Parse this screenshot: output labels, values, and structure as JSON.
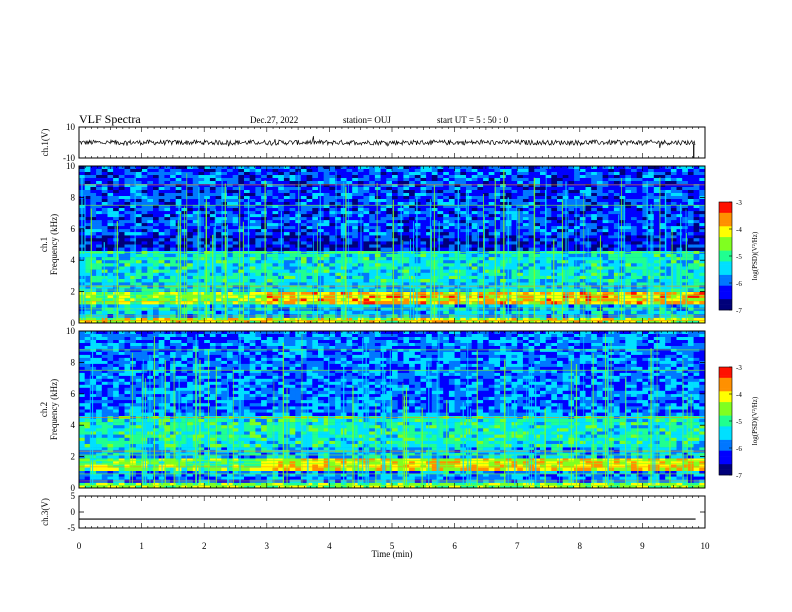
{
  "header": {
    "title": "VLF Spectra",
    "date": "Dec.27, 2022",
    "station": "station= OUJ",
    "start": "start  UT =   5 : 50 : 0"
  },
  "colors": {
    "spectrogram_palette": [
      "#00007a",
      "#0000ff",
      "#0077ff",
      "#00e0ff",
      "#20ff90",
      "#80ff20",
      "#ffff00",
      "#ff9000",
      "#ff1000",
      "#ffffff"
    ],
    "trace": "#000000"
  },
  "chart_data": [
    {
      "type": "line",
      "name": "ch1-waveform",
      "ylabel": "ch.1(V)",
      "ylim": [
        -10,
        10
      ],
      "yticks": [
        "10",
        "-10"
      ],
      "xlim": [
        0,
        10
      ],
      "x": [
        0,
        9.85
      ],
      "y_level": 0,
      "end_spike_x": 9.82
    },
    {
      "type": "heatmap",
      "name": "ch1-spectrogram",
      "ylabel": "ch.1\nFrequency (kHz)",
      "ylim": [
        0,
        10
      ],
      "yticks": [
        "0",
        "2",
        "4",
        "6",
        "8",
        "10"
      ],
      "xlim": [
        0,
        10
      ],
      "colorbar": {
        "label": "log(PSD)(V²/Hz)",
        "range": [
          -7,
          -3
        ],
        "ticks": [
          "-3",
          "-4",
          "-5",
          "-6",
          "-7"
        ]
      },
      "bands": [
        {
          "f": [
            0,
            0.35
          ],
          "level": -4.3
        },
        {
          "f": [
            0.35,
            1.2
          ],
          "level": -5.6
        },
        {
          "f": [
            1.2,
            2.0
          ],
          "level": -4.4
        },
        {
          "f": [
            2.0,
            2.6
          ],
          "level": -5.5
        },
        {
          "f": [
            2.6,
            4.6
          ],
          "level": -5.3
        },
        {
          "f": [
            4.6,
            5.6
          ],
          "level": -6.4
        },
        {
          "f": [
            5.6,
            10
          ],
          "level": -6.1
        }
      ],
      "step_change_x": 2.9
    },
    {
      "type": "heatmap",
      "name": "ch2-spectrogram",
      "ylabel": "ch.2\nFrequency (kHz)",
      "ylim": [
        0,
        10
      ],
      "yticks": [
        "0",
        "2",
        "4",
        "6",
        "8",
        "10"
      ],
      "xlim": [
        0,
        10
      ],
      "colorbar": {
        "label": "log(PSD)(V²/Hz)",
        "range": [
          -7,
          -3
        ],
        "ticks": [
          "-3",
          "-4",
          "-5",
          "-6",
          "-7"
        ]
      },
      "bands": [
        {
          "f": [
            0,
            0.35
          ],
          "level": -4.6
        },
        {
          "f": [
            0.35,
            1.1
          ],
          "level": -5.8
        },
        {
          "f": [
            1.1,
            1.9
          ],
          "level": -4.5
        },
        {
          "f": [
            1.9,
            2.6
          ],
          "level": -5.6
        },
        {
          "f": [
            2.6,
            4.6
          ],
          "level": -5.2
        },
        {
          "f": [
            4.6,
            6.0
          ],
          "level": -5.9
        },
        {
          "f": [
            6.0,
            10
          ],
          "level": -5.9
        }
      ],
      "step_change_x": 2.9
    },
    {
      "type": "line",
      "name": "ch3-waveform",
      "ylabel": "ch.3(V)",
      "ylim": [
        -5,
        5
      ],
      "yticks": [
        "5",
        "0",
        "-5"
      ],
      "xlim": [
        0,
        10
      ],
      "x": [
        0,
        9.85
      ],
      "y_level": -2.2
    }
  ],
  "xaxis": {
    "label": "Time (min)",
    "ticks": [
      "0",
      "1",
      "2",
      "3",
      "4",
      "5",
      "6",
      "7",
      "8",
      "9",
      "10"
    ]
  }
}
